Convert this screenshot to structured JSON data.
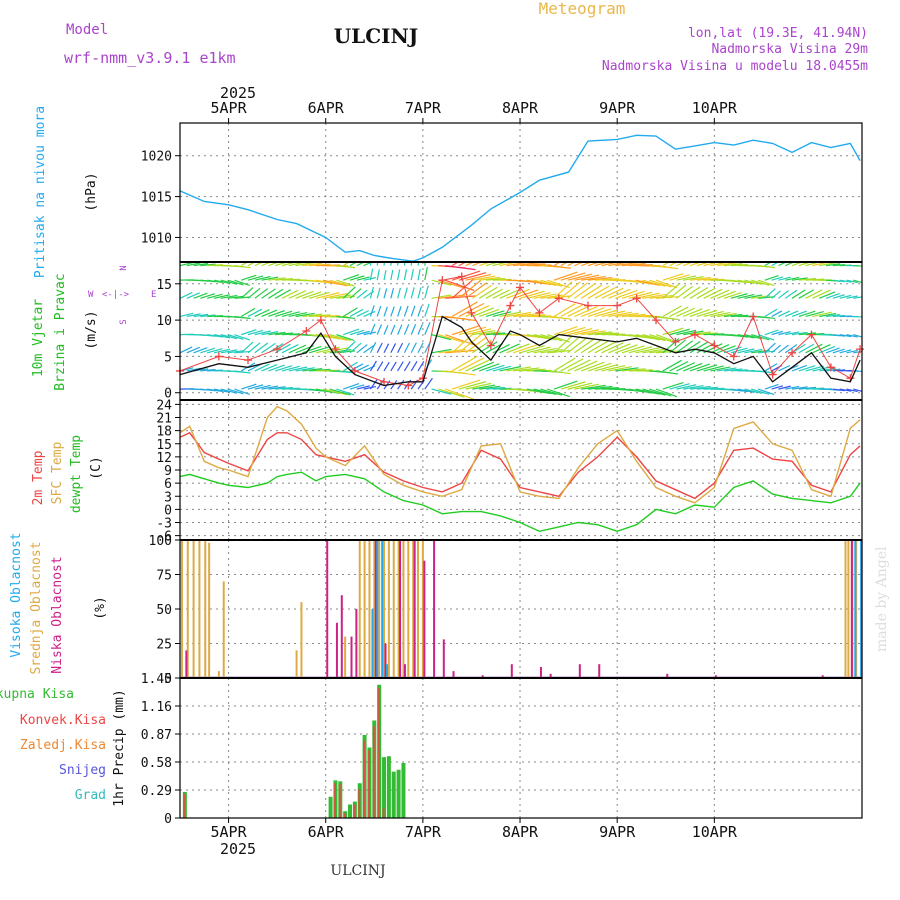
{
  "header": {
    "station": "ULCINJ",
    "subtitle": "Meteogram",
    "model_label": "Model",
    "model_name": "wrf-nmm_v3.9.1 e1km",
    "lonlat": "lon,lat (19.3E, 41.94N)",
    "elevation": "Nadmorska Visina 29m",
    "model_elevation": "Nadmorska Visina u modelu 18.0455m",
    "year": "2025",
    "footer_station": "ULCINJ",
    "watermark": "made by Angel"
  },
  "colors": {
    "pressure": "#22aaee",
    "temp2m": "#ee4444",
    "sfc_temp": "#ddaa44",
    "dewpt": "#22cc22",
    "high_cloud": "#22aaee",
    "mid_cloud": "#ddaa44",
    "low_cloud": "#cc2288",
    "total_rain": "#33bb33",
    "conv_rain": "#ee4444",
    "frz_rain": "#ee8833",
    "snow": "#5555dd",
    "hail": "#33bbbb",
    "wind_gust": "#ee4444",
    "wind_speed": "#111111"
  },
  "chart_data": [
    {
      "type": "line",
      "panel": "pressure",
      "ylabel": "Pritisak na nivou mora",
      "units": "(hPa)",
      "xticks": [
        "5APR",
        "6APR",
        "7APR",
        "8APR",
        "9APR",
        "10APR"
      ],
      "yticks": [
        1010,
        1015,
        1020
      ],
      "ylim": [
        1007,
        1024
      ],
      "x": [
        0.5,
        0.75,
        1.0,
        1.2,
        1.5,
        1.7,
        2.0,
        2.2,
        2.35,
        2.5,
        2.7,
        2.9,
        3.0,
        3.2,
        3.5,
        3.7,
        4.0,
        4.2,
        4.5,
        4.7,
        5.0,
        5.2,
        5.4,
        5.6,
        5.8,
        6.0,
        6.2,
        6.4,
        6.6,
        6.8,
        7.0,
        7.2,
        7.4,
        7.5
      ],
      "values": [
        1015.7,
        1014.4,
        1014.0,
        1013.4,
        1012.2,
        1011.7,
        1010.0,
        1008.2,
        1008.4,
        1007.8,
        1007.4,
        1007.1,
        1007.5,
        1008.8,
        1011.5,
        1013.5,
        1015.5,
        1017.0,
        1018.0,
        1021.8,
        1022.0,
        1022.5,
        1022.4,
        1020.8,
        1021.2,
        1021.6,
        1021.3,
        1021.9,
        1021.5,
        1020.4,
        1021.6,
        1021.0,
        1021.5,
        1019.4
      ]
    },
    {
      "type": "line",
      "panel": "wind",
      "ylabel": "10m Vjetar Brzina i Pravac",
      "units": "(m/s)",
      "compass": [
        "N",
        "W",
        "E",
        "S"
      ],
      "yticks": [
        0,
        5,
        10,
        15
      ],
      "ylim": [
        -1,
        18
      ],
      "series": [
        {
          "name": "wind_speed",
          "x": [
            0.5,
            0.9,
            1.2,
            1.5,
            1.8,
            1.95,
            2.1,
            2.3,
            2.6,
            2.85,
            3.0,
            3.2,
            3.4,
            3.5,
            3.7,
            3.9,
            4.0,
            4.2,
            4.4,
            4.7,
            5.0,
            5.2,
            5.4,
            5.6,
            5.8,
            6.0,
            6.2,
            6.4,
            6.6,
            6.8,
            7.0,
            7.2,
            7.4,
            7.5
          ],
          "values": [
            2.5,
            4.0,
            3.5,
            4.5,
            5.5,
            8.2,
            5.0,
            2.5,
            1.0,
            1.5,
            1.5,
            10.5,
            9.0,
            7.0,
            4.5,
            8.5,
            8.0,
            6.5,
            8.0,
            7.5,
            7.0,
            7.5,
            6.5,
            5.5,
            6.0,
            5.5,
            4.0,
            5.0,
            1.5,
            3.5,
            5.5,
            2.0,
            1.5,
            4.5
          ]
        },
        {
          "name": "wind_gust",
          "x": [
            0.5,
            0.9,
            1.2,
            1.5,
            1.8,
            1.95,
            2.1,
            2.3,
            2.6,
            2.85,
            3.0,
            3.2,
            3.4,
            3.5,
            3.7,
            3.9,
            4.0,
            4.2,
            4.4,
            4.7,
            5.0,
            5.2,
            5.4,
            5.6,
            5.8,
            6.0,
            6.2,
            6.4,
            6.6,
            6.8,
            7.0,
            7.2,
            7.4,
            7.5
          ],
          "values": [
            3.0,
            5.0,
            4.5,
            6.0,
            8.5,
            10.0,
            6.0,
            3.0,
            1.5,
            1.0,
            2.0,
            15.5,
            16.0,
            11.0,
            6.5,
            12.0,
            14.5,
            11.0,
            13.0,
            12.0,
            12.0,
            13.0,
            10.0,
            7.0,
            8.0,
            6.5,
            5.0,
            10.5,
            2.5,
            5.5,
            8.0,
            3.5,
            2.0,
            6.0
          ]
        }
      ]
    },
    {
      "type": "line",
      "panel": "temperature",
      "ylabel": [
        "2m Temp",
        "SFC Temp",
        "dewpt Temp"
      ],
      "units": "(C)",
      "yticks": [
        -6,
        -3,
        0,
        3,
        6,
        9,
        12,
        15,
        18,
        21,
        24
      ],
      "ylim": [
        -7,
        25
      ],
      "x": [
        0.5,
        0.6,
        0.75,
        0.9,
        1.0,
        1.2,
        1.4,
        1.5,
        1.6,
        1.75,
        1.9,
        2.0,
        2.2,
        2.4,
        2.6,
        2.8,
        3.0,
        3.2,
        3.4,
        3.6,
        3.8,
        4.0,
        4.2,
        4.4,
        4.6,
        4.8,
        5.0,
        5.2,
        5.4,
        5.6,
        5.8,
        6.0,
        6.2,
        6.4,
        6.6,
        6.8,
        7.0,
        7.2,
        7.4,
        7.5
      ],
      "series": [
        {
          "name": "2m Temp",
          "values": [
            16.5,
            17.5,
            13.0,
            11.5,
            10.5,
            8.8,
            16.0,
            17.5,
            17.5,
            16.0,
            12.5,
            12.0,
            11.0,
            12.5,
            8.5,
            6.5,
            5.0,
            4.0,
            6.0,
            13.5,
            11.5,
            5.0,
            4.0,
            3.0,
            8.5,
            12.0,
            16.5,
            12.0,
            6.5,
            4.5,
            2.5,
            6.0,
            13.5,
            14.0,
            11.5,
            11.0,
            5.5,
            4.0,
            12.5,
            14.5
          ]
        },
        {
          "name": "SFC Temp",
          "values": [
            17.5,
            19.0,
            11.0,
            9.5,
            9.0,
            7.5,
            21.0,
            23.5,
            22.5,
            19.5,
            14.0,
            12.0,
            10.0,
            14.5,
            8.0,
            5.5,
            4.0,
            3.0,
            4.5,
            14.5,
            15.0,
            4.0,
            3.0,
            2.5,
            9.5,
            15.0,
            18.0,
            11.0,
            5.0,
            3.0,
            1.5,
            5.0,
            18.5,
            20.0,
            15.0,
            13.5,
            4.5,
            3.0,
            18.5,
            20.5
          ]
        },
        {
          "name": "dewpt Temp",
          "values": [
            7.5,
            8.0,
            7.0,
            6.0,
            5.5,
            5.0,
            6.0,
            7.5,
            8.0,
            8.5,
            6.5,
            7.5,
            8.0,
            7.0,
            4.0,
            2.0,
            1.0,
            -1.0,
            -0.5,
            -0.5,
            -1.5,
            -3.0,
            -5.0,
            -4.0,
            -3.0,
            -3.5,
            -5.0,
            -3.5,
            0.0,
            -1.0,
            1.0,
            0.5,
            5.0,
            6.5,
            3.5,
            2.5,
            2.0,
            1.5,
            3.0,
            6.0
          ]
        }
      ]
    },
    {
      "type": "bar",
      "panel": "cloud",
      "ylabel": [
        "Visoka Oblacnost",
        "Srednja Oblacnost",
        "Niska Oblacnost"
      ],
      "units": "(%)",
      "yticks": [
        0,
        25,
        50,
        75,
        100
      ],
      "ylim": [
        0,
        100
      ],
      "series": [
        {
          "name": "Srednja Oblacnost",
          "x": [
            0.52,
            0.58,
            0.64,
            0.7,
            0.76,
            0.8,
            0.9,
            0.95,
            1.7,
            1.75,
            2.2,
            2.35,
            2.4,
            2.45,
            2.5,
            2.55,
            2.6,
            2.65,
            2.7,
            2.75,
            2.8,
            2.85,
            2.9,
            2.95,
            3.0,
            7.35,
            7.38,
            7.42,
            7.46
          ],
          "values": [
            100,
            100,
            100,
            100,
            100,
            98,
            5,
            70,
            20,
            55,
            30,
            100,
            100,
            100,
            100,
            100,
            100,
            100,
            100,
            100,
            100,
            100,
            100,
            100,
            100,
            100,
            100,
            100,
            100
          ]
        },
        {
          "name": "Niska Oblacnost",
          "x": [
            0.55,
            2.0,
            2.1,
            2.15,
            2.25,
            2.3,
            2.5,
            2.6,
            2.75,
            2.8,
            2.9,
            3.0,
            3.1,
            3.2,
            3.3,
            3.6,
            3.9,
            4.2,
            4.3,
            4.6,
            4.8,
            5.5,
            6.0,
            7.1,
            7.4,
            7.5
          ],
          "values": [
            20,
            100,
            40,
            60,
            30,
            50,
            100,
            25,
            100,
            10,
            100,
            85,
            100,
            28,
            5,
            2,
            10,
            8,
            3,
            10,
            10,
            3,
            2,
            2,
            100,
            100
          ]
        },
        {
          "name": "Visoka Oblacnost",
          "x": [
            2.45,
            2.5,
            2.55,
            2.6,
            7.42,
            7.48
          ],
          "values": [
            50,
            100,
            100,
            10,
            100,
            100
          ]
        }
      ]
    },
    {
      "type": "bar",
      "panel": "precip",
      "ylabel": "1hr Precip",
      "units": "(mm)",
      "legend": [
        "Ukupna Kisa",
        "Konvek.Kisa",
        "Zaledj.Kisa",
        "Snijeg",
        "Grad"
      ],
      "yticks": [
        0,
        0.29,
        0.58,
        0.87,
        1.16,
        1.45
      ],
      "ylim": [
        0,
        1.45
      ],
      "series": [
        {
          "name": "Ukupna Kisa",
          "x": [
            0.55,
            2.05,
            2.1,
            2.15,
            2.2,
            2.25,
            2.3,
            2.35,
            2.4,
            2.45,
            2.5,
            2.55,
            2.6,
            2.65,
            2.7,
            2.75,
            2.8
          ],
          "values": [
            0.27,
            0.22,
            0.39,
            0.38,
            0.07,
            0.14,
            0.17,
            0.36,
            0.86,
            0.73,
            1.01,
            1.38,
            0.63,
            0.64,
            0.48,
            0.5,
            0.57
          ]
        },
        {
          "name": "Konvek.Kisa",
          "x": [
            0.55,
            2.1,
            2.15,
            2.2,
            2.3,
            2.35,
            2.4,
            2.45,
            2.5,
            2.55,
            2.6
          ],
          "values": [
            0.25,
            0.36,
            0.35,
            0.05,
            0.14,
            0.3,
            0.8,
            0.7,
            0.95,
            1.35,
            0.1
          ]
        }
      ]
    }
  ]
}
